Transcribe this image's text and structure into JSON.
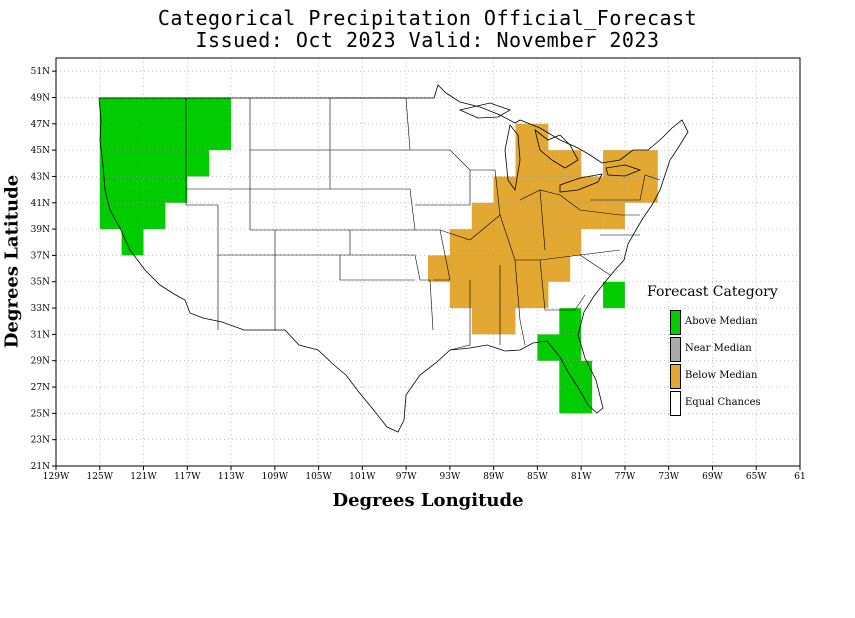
{
  "title": {
    "line1": "Categorical Precipitation Official_Forecast",
    "line2": "Issued: Oct 2023 Valid: November 2023"
  },
  "axes": {
    "xlabel": "Degrees Longitude",
    "ylabel": "Degrees Latitude",
    "x_ticks": [
      "129W",
      "125W",
      "121W",
      "117W",
      "113W",
      "109W",
      "105W",
      "101W",
      "97W",
      "93W",
      "89W",
      "85W",
      "81W",
      "77W",
      "73W",
      "69W",
      "65W",
      "61"
    ],
    "y_ticks": [
      "21N",
      "23N",
      "25N",
      "27N",
      "29N",
      "31N",
      "33N",
      "35N",
      "37N",
      "39N",
      "41N",
      "43N",
      "45N",
      "47N",
      "49N",
      "51N"
    ],
    "lon_range": [
      -129,
      -61
    ],
    "lat_range": [
      21,
      52
    ]
  },
  "legend": {
    "title": "Forecast Category",
    "items": [
      {
        "label": "Above Median",
        "color": "#00cc00"
      },
      {
        "label": "Near Median",
        "color": "#aaaaaa"
      },
      {
        "label": "Below Median",
        "color": "#e2a832"
      },
      {
        "label": "Equal Chances",
        "color": "#ffffff"
      }
    ]
  },
  "forecast_regions": [
    {
      "category": "Above Median",
      "color": "#00cc00",
      "region": "Pacific Northwest",
      "polygon": [
        [
          -125,
          49
        ],
        [
          -113,
          49
        ],
        [
          -113,
          45
        ],
        [
          -115,
          45
        ],
        [
          -115,
          43
        ],
        [
          -117,
          43
        ],
        [
          -117,
          41
        ],
        [
          -119,
          41
        ],
        [
          -119,
          39
        ],
        [
          -121,
          39
        ],
        [
          -121,
          37
        ],
        [
          -123,
          37
        ],
        [
          -123,
          39
        ],
        [
          -125,
          39
        ]
      ]
    },
    {
      "category": "Above Median",
      "color": "#00cc00",
      "region": "Florida and Southeast coast",
      "polygon": [
        [
          -83,
          33
        ],
        [
          -81,
          33
        ],
        [
          -81,
          29
        ],
        [
          -80,
          29
        ],
        [
          -80,
          25
        ],
        [
          -83,
          25
        ],
        [
          -83,
          29
        ],
        [
          -85,
          29
        ],
        [
          -85,
          31
        ],
        [
          -83,
          31
        ]
      ]
    },
    {
      "category": "Above Median",
      "color": "#00cc00",
      "region": "North Carolina coast",
      "polygon": [
        [
          -79,
          35
        ],
        [
          -77,
          35
        ],
        [
          -77,
          33
        ],
        [
          -79,
          33
        ]
      ]
    },
    {
      "category": "Below Median",
      "color": "#e2a832",
      "region": "Midwest and Ohio Valley",
      "polygon": [
        [
          -87,
          47
        ],
        [
          -84,
          47
        ],
        [
          -84,
          45
        ],
        [
          -81,
          45
        ],
        [
          -81,
          43
        ],
        [
          -77,
          43
        ],
        [
          -77,
          41
        ],
        [
          -79,
          41
        ],
        [
          -79,
          39
        ],
        [
          -81,
          39
        ],
        [
          -81,
          37
        ],
        [
          -82,
          37
        ],
        [
          -82,
          35
        ],
        [
          -84,
          35
        ],
        [
          -84,
          33
        ],
        [
          -87,
          33
        ],
        [
          -87,
          31
        ],
        [
          -91,
          31
        ],
        [
          -91,
          33
        ],
        [
          -93,
          33
        ],
        [
          -93,
          35
        ],
        [
          -95,
          35
        ],
        [
          -95,
          37
        ],
        [
          -93,
          37
        ],
        [
          -93,
          39
        ],
        [
          -91,
          39
        ],
        [
          -91,
          41
        ],
        [
          -89,
          41
        ],
        [
          -89,
          43
        ],
        [
          -87,
          43
        ],
        [
          -87,
          45
        ]
      ]
    },
    {
      "category": "Below Median",
      "color": "#e2a832",
      "region": "Pennsylvania and New York",
      "polygon": [
        [
          -79,
          45
        ],
        [
          -74,
          45
        ],
        [
          -74,
          41
        ],
        [
          -77,
          41
        ],
        [
          -77,
          39
        ],
        [
          -79,
          39
        ],
        [
          -79,
          41
        ],
        [
          -81,
          41
        ],
        [
          -81,
          43
        ],
        [
          -79,
          43
        ]
      ]
    }
  ]
}
